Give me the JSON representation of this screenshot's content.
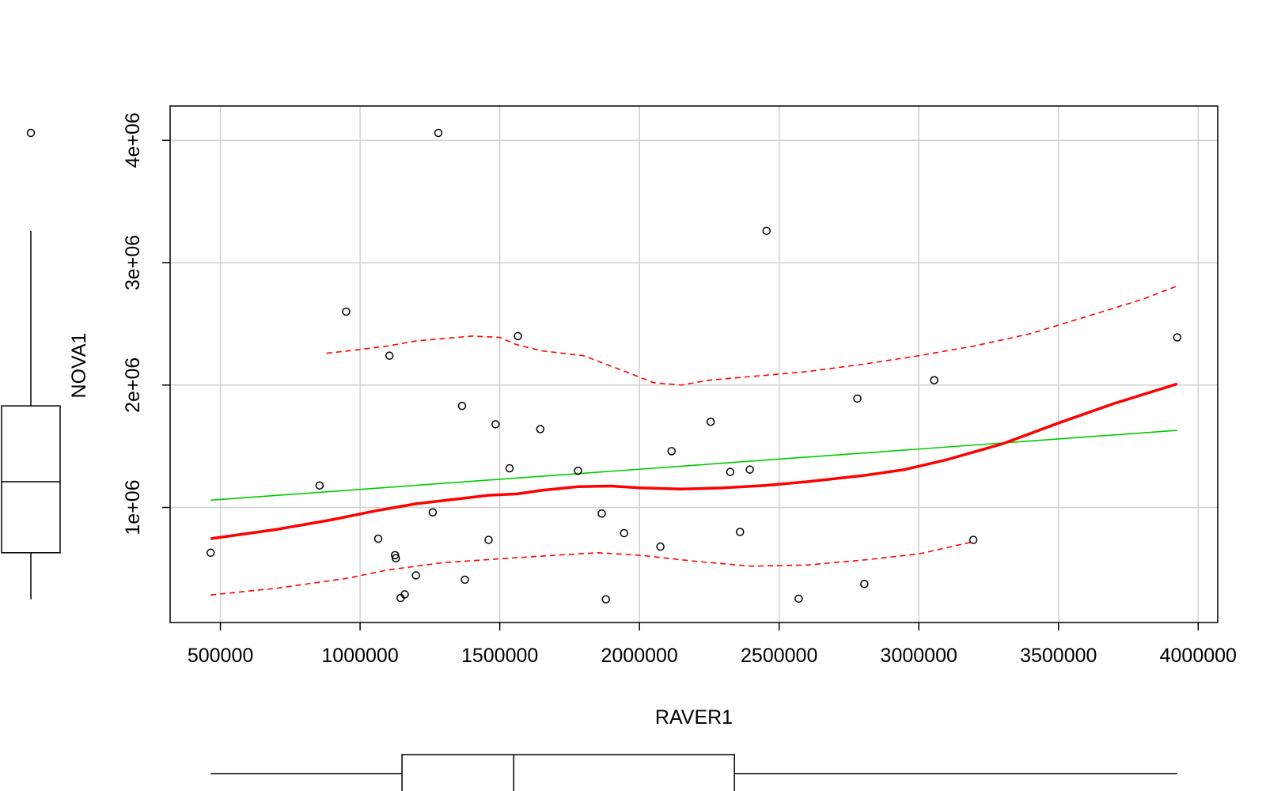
{
  "chart_data": {
    "type": "scatter",
    "title": "",
    "xlabel": "RAVER1",
    "ylabel": "NOVA1",
    "xlim": [
      320000,
      4070000
    ],
    "ylim": [
      60000,
      4280000
    ],
    "x_ticks": [
      500000,
      1000000,
      1500000,
      2000000,
      2500000,
      3000000,
      3500000,
      4000000
    ],
    "x_tick_labels": [
      "500000",
      "1000000",
      "1500000",
      "2000000",
      "2500000",
      "3000000",
      "3500000",
      "4000000"
    ],
    "y_ticks": [
      1000000,
      2000000,
      3000000,
      4000000
    ],
    "y_tick_labels": [
      "1e+06",
      "2e+06",
      "3e+06",
      "4e+06"
    ],
    "grid": true,
    "legend": "none",
    "points": [
      {
        "x": 465000,
        "y": 630000
      },
      {
        "x": 855000,
        "y": 1180000
      },
      {
        "x": 950000,
        "y": 2600000
      },
      {
        "x": 1065000,
        "y": 745000
      },
      {
        "x": 1105000,
        "y": 2240000
      },
      {
        "x": 1125000,
        "y": 610000
      },
      {
        "x": 1128000,
        "y": 585000
      },
      {
        "x": 1145000,
        "y": 260000
      },
      {
        "x": 1160000,
        "y": 290000
      },
      {
        "x": 1200000,
        "y": 445000
      },
      {
        "x": 1260000,
        "y": 960000
      },
      {
        "x": 1280000,
        "y": 4060000
      },
      {
        "x": 1365000,
        "y": 1830000
      },
      {
        "x": 1375000,
        "y": 410000
      },
      {
        "x": 1460000,
        "y": 735000
      },
      {
        "x": 1485000,
        "y": 1680000
      },
      {
        "x": 1535000,
        "y": 1320000
      },
      {
        "x": 1565000,
        "y": 2400000
      },
      {
        "x": 1645000,
        "y": 1640000
      },
      {
        "x": 1780000,
        "y": 1300000
      },
      {
        "x": 1865000,
        "y": 950000
      },
      {
        "x": 1880000,
        "y": 250000
      },
      {
        "x": 1945000,
        "y": 790000
      },
      {
        "x": 2075000,
        "y": 680000
      },
      {
        "x": 2115000,
        "y": 1460000
      },
      {
        "x": 2255000,
        "y": 1700000
      },
      {
        "x": 2325000,
        "y": 1290000
      },
      {
        "x": 2360000,
        "y": 800000
      },
      {
        "x": 2395000,
        "y": 1310000
      },
      {
        "x": 2455000,
        "y": 3260000
      },
      {
        "x": 2570000,
        "y": 255000
      },
      {
        "x": 2780000,
        "y": 1890000
      },
      {
        "x": 2805000,
        "y": 375000
      },
      {
        "x": 3055000,
        "y": 2040000
      },
      {
        "x": 3195000,
        "y": 735000
      },
      {
        "x": 3925000,
        "y": 2390000
      }
    ],
    "series": [
      {
        "style": "linear-fit",
        "color": "#00cc00",
        "x": [
          465000,
          3925000
        ],
        "y": [
          1060000,
          1630000
        ]
      },
      {
        "style": "smoother",
        "color": "#ff0000",
        "x": [
          465000,
          700000,
          900000,
          1050000,
          1200000,
          1350000,
          1460000,
          1560000,
          1650000,
          1780000,
          1900000,
          2000000,
          2150000,
          2300000,
          2450000,
          2600000,
          2800000,
          2950000,
          3100000,
          3300000,
          3500000,
          3700000,
          3925000
        ],
        "y": [
          745000,
          820000,
          900000,
          970000,
          1030000,
          1070000,
          1100000,
          1110000,
          1140000,
          1170000,
          1175000,
          1160000,
          1150000,
          1160000,
          1180000,
          1210000,
          1260000,
          1310000,
          1390000,
          1520000,
          1690000,
          1850000,
          2010000
        ]
      },
      {
        "style": "spread-upper",
        "color": "#ff0000",
        "x": [
          880000,
          1000000,
          1100000,
          1200000,
          1300000,
          1400000,
          1500000,
          1560000,
          1650000,
          1800000,
          1950000,
          2050000,
          2150000,
          2250000,
          2400000,
          2600000,
          2800000,
          3000000,
          3200000,
          3400000,
          3600000,
          3800000,
          3925000
        ],
        "y": [
          2260000,
          2290000,
          2320000,
          2360000,
          2380000,
          2400000,
          2390000,
          2330000,
          2280000,
          2240000,
          2110000,
          2020000,
          2000000,
          2040000,
          2070000,
          2110000,
          2170000,
          2240000,
          2320000,
          2420000,
          2560000,
          2700000,
          2810000
        ]
      },
      {
        "style": "spread-lower",
        "color": "#ff0000",
        "x": [
          465000,
          700000,
          950000,
          1100000,
          1300000,
          1500000,
          1700000,
          1850000,
          2000000,
          2200000,
          2400000,
          2600000,
          2800000,
          3000000,
          3195000
        ],
        "y": [
          285000,
          340000,
          420000,
          490000,
          550000,
          580000,
          610000,
          630000,
          610000,
          560000,
          520000,
          530000,
          570000,
          620000,
          720000
        ]
      }
    ],
    "marginal_boxplots": {
      "x": {
        "whisker_low": 465000,
        "q1": 1150000,
        "median": 1550000,
        "q3": 2340000,
        "whisker_high": 3925000,
        "outliers": []
      },
      "y": {
        "whisker_low": 250000,
        "q1": 630000,
        "median": 1210000,
        "q3": 1830000,
        "whisker_high": 3260000,
        "outliers": [
          4060000
        ]
      }
    }
  }
}
